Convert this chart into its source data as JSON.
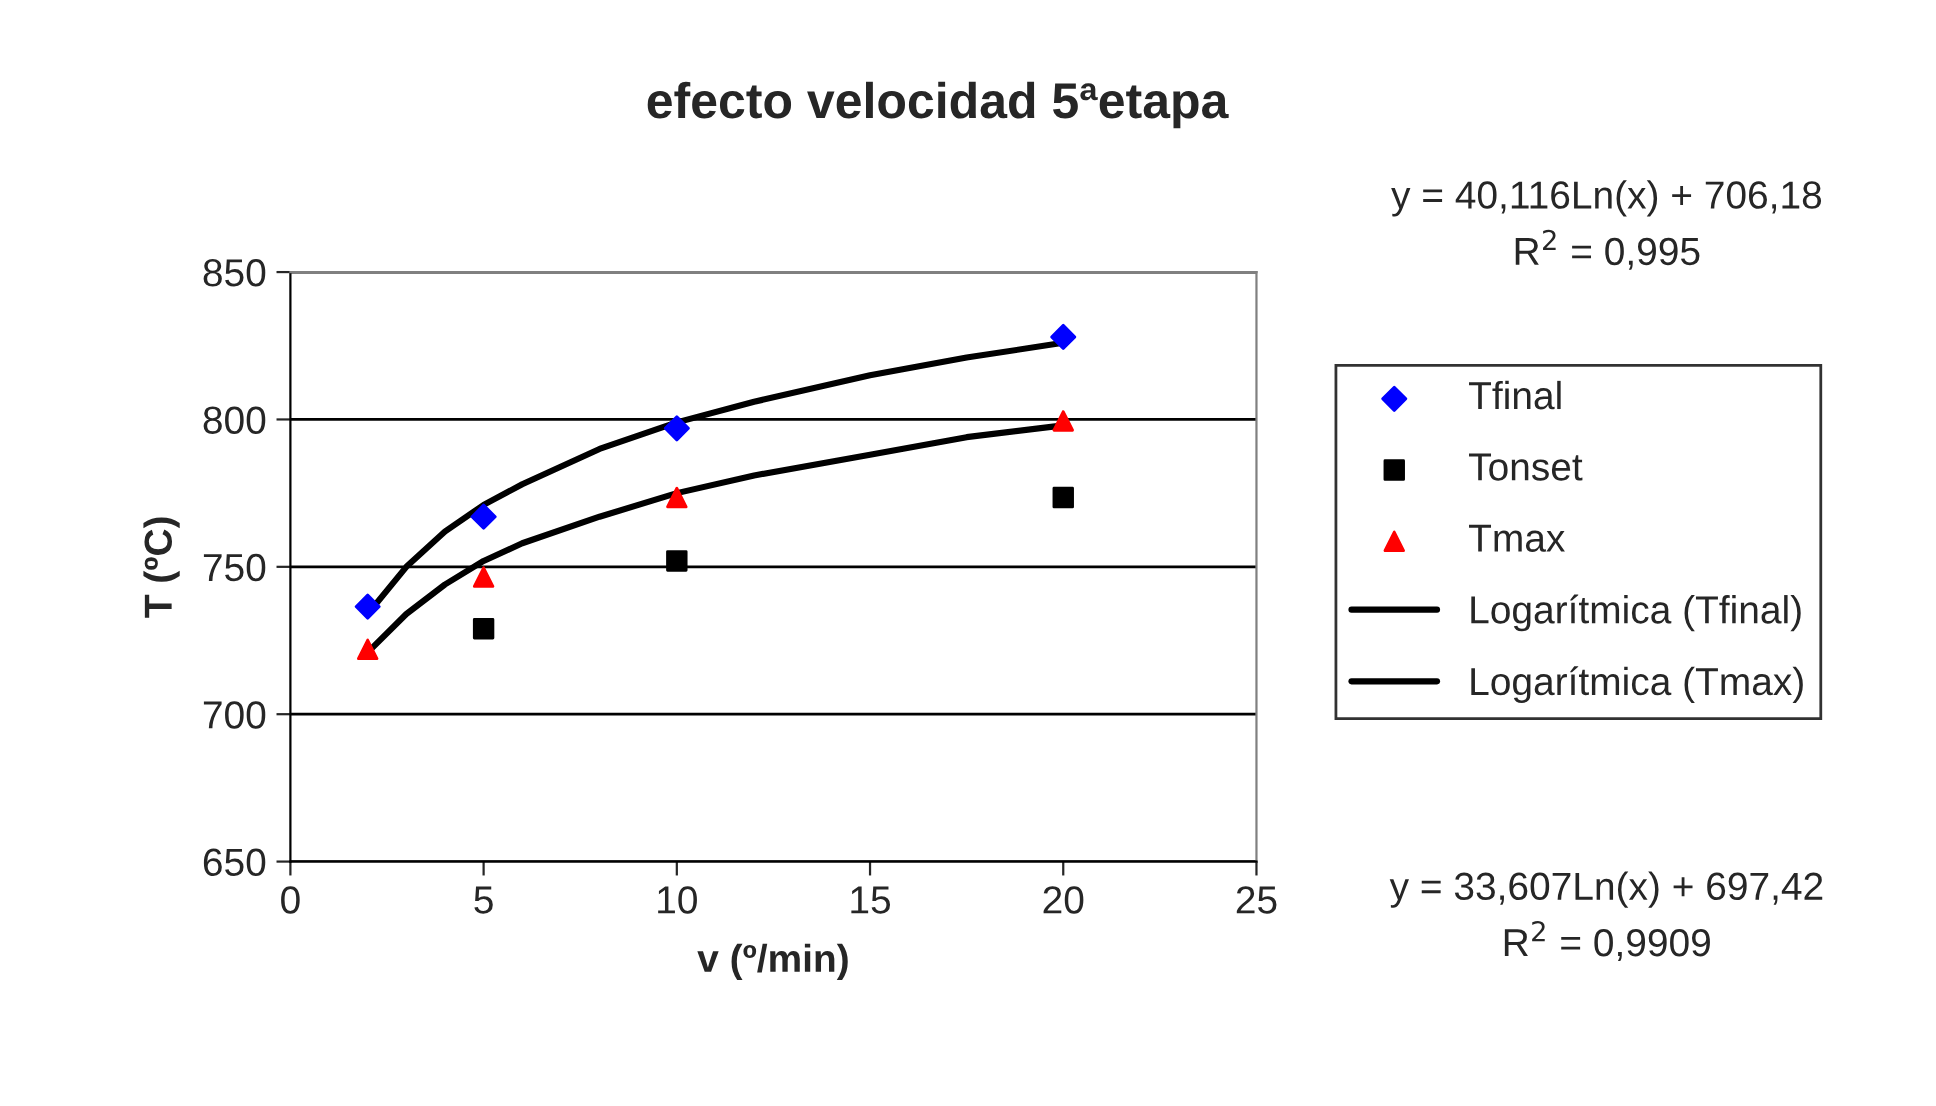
{
  "chart_data": {
    "type": "scatter",
    "title": "efecto velocidad 5ªetapa",
    "xlabel": "v (º/min)",
    "ylabel": "T (ºC)",
    "xlim": [
      0,
      25
    ],
    "xticks": [
      0,
      5,
      10,
      15,
      20,
      25
    ],
    "ylim": [
      650,
      850
    ],
    "yticks": [
      650,
      700,
      750,
      800,
      850
    ],
    "grid": "y",
    "legend": "right",
    "series": [
      {
        "name": "Tfinal",
        "marker": "diamond",
        "color": "#0000ff",
        "x": [
          2,
          5,
          10,
          20
        ],
        "values": [
          736.5,
          767,
          797,
          828
        ]
      },
      {
        "name": "Tonset",
        "marker": "square",
        "color": "#000000",
        "x": [
          5,
          10,
          20
        ],
        "values": [
          729,
          752,
          773.5
        ]
      },
      {
        "name": "Tmax",
        "marker": "triangle",
        "color": "#ff0000",
        "x": [
          2,
          5,
          10,
          20
        ],
        "values": [
          722,
          746.5,
          773.5,
          799.5
        ]
      },
      {
        "name": "Logarítmica (Tfinal)",
        "type": "line",
        "marker": "none",
        "color": "#000000",
        "x": [
          2,
          3,
          4,
          5,
          6,
          8,
          10,
          12,
          15,
          17.5,
          20
        ],
        "values": [
          734,
          750,
          762,
          771,
          778,
          790,
          799,
          806,
          815,
          821,
          826
        ]
      },
      {
        "name": "Logarítmica (Tmax)",
        "type": "line",
        "marker": "none",
        "color": "#000000",
        "x": [
          2,
          3,
          4,
          5,
          6,
          8,
          10,
          12,
          15,
          17.5,
          20
        ],
        "values": [
          721,
          734,
          744,
          752,
          758,
          767,
          775,
          781,
          788,
          794,
          798
        ]
      }
    ],
    "annotations": [
      "y = 40,116Ln(x) + 706,18\nR$^{2}$ = 0,995",
      "y = 33,607Ln(x) + 697,42\nR$^{2}$ = 0,9909"
    ]
  }
}
